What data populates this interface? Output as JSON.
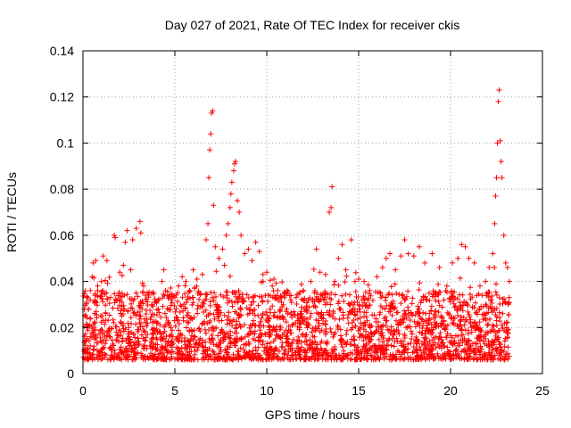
{
  "chart_data": {
    "type": "scatter",
    "title": "Day 027 of 2021, Rate Of TEC Index for receiver ckis",
    "xlabel": "GPS time / hours",
    "ylabel": "ROTI / TECUs",
    "xlim": [
      0,
      25
    ],
    "ylim": [
      0,
      0.14
    ],
    "x_ticks": [
      "0",
      "5",
      "10",
      "15",
      "20",
      "25"
    ],
    "y_ticks": [
      "0",
      "0.02",
      "0.04",
      "0.06",
      "0.08",
      "0.1",
      "0.12",
      "0.14"
    ],
    "grid": true,
    "marker": "plus",
    "color": "#ff0000",
    "points": [
      [
        0.1,
        0.025
      ],
      [
        0.2,
        0.031
      ],
      [
        0.3,
        0.028
      ],
      [
        0.4,
        0.036
      ],
      [
        0.5,
        0.042
      ],
      [
        0.55,
        0.048
      ],
      [
        0.7,
        0.049
      ],
      [
        0.8,
        0.038
      ],
      [
        1.0,
        0.04
      ],
      [
        1.1,
        0.051
      ],
      [
        1.3,
        0.049
      ],
      [
        1.5,
        0.033
      ],
      [
        1.7,
        0.06
      ],
      [
        1.75,
        0.059
      ],
      [
        2.0,
        0.044
      ],
      [
        2.2,
        0.047
      ],
      [
        2.3,
        0.057
      ],
      [
        2.4,
        0.062
      ],
      [
        2.6,
        0.045
      ],
      [
        2.7,
        0.058
      ],
      [
        2.9,
        0.063
      ],
      [
        3.1,
        0.066
      ],
      [
        3.15,
        0.061
      ],
      [
        3.3,
        0.038
      ],
      [
        3.5,
        0.035
      ],
      [
        3.9,
        0.031
      ],
      [
        4.1,
        0.028
      ],
      [
        4.3,
        0.04
      ],
      [
        4.4,
        0.045
      ],
      [
        4.6,
        0.034
      ],
      [
        4.8,
        0.032
      ],
      [
        5.0,
        0.033
      ],
      [
        5.2,
        0.038
      ],
      [
        5.4,
        0.042
      ],
      [
        5.6,
        0.04
      ],
      [
        5.8,
        0.036
      ],
      [
        6.0,
        0.045
      ],
      [
        6.2,
        0.041
      ],
      [
        6.5,
        0.043
      ],
      [
        6.7,
        0.058
      ],
      [
        6.8,
        0.065
      ],
      [
        6.85,
        0.085
      ],
      [
        6.9,
        0.097
      ],
      [
        6.95,
        0.104
      ],
      [
        7.0,
        0.113
      ],
      [
        7.05,
        0.114
      ],
      [
        7.1,
        0.073
      ],
      [
        7.2,
        0.055
      ],
      [
        7.4,
        0.05
      ],
      [
        7.6,
        0.054
      ],
      [
        7.7,
        0.047
      ],
      [
        7.8,
        0.06
      ],
      [
        7.9,
        0.065
      ],
      [
        8.0,
        0.072
      ],
      [
        8.05,
        0.078
      ],
      [
        8.1,
        0.083
      ],
      [
        8.2,
        0.088
      ],
      [
        8.25,
        0.091
      ],
      [
        8.3,
        0.092
      ],
      [
        8.4,
        0.075
      ],
      [
        8.5,
        0.07
      ],
      [
        8.6,
        0.06
      ],
      [
        8.8,
        0.052
      ],
      [
        9.0,
        0.054
      ],
      [
        9.2,
        0.049
      ],
      [
        9.4,
        0.057
      ],
      [
        9.6,
        0.053
      ],
      [
        9.8,
        0.04
      ],
      [
        10.0,
        0.044
      ],
      [
        10.3,
        0.038
      ],
      [
        10.6,
        0.036
      ],
      [
        11.0,
        0.034
      ],
      [
        11.3,
        0.032
      ],
      [
        11.6,
        0.033
      ],
      [
        12.0,
        0.036
      ],
      [
        12.4,
        0.04
      ],
      [
        12.7,
        0.054
      ],
      [
        12.9,
        0.044
      ],
      [
        13.2,
        0.043
      ],
      [
        13.4,
        0.07
      ],
      [
        13.5,
        0.072
      ],
      [
        13.55,
        0.081
      ],
      [
        13.7,
        0.04
      ],
      [
        13.9,
        0.05
      ],
      [
        14.1,
        0.056
      ],
      [
        14.3,
        0.045
      ],
      [
        14.6,
        0.058
      ],
      [
        14.8,
        0.04
      ],
      [
        15.0,
        0.041
      ],
      [
        15.3,
        0.04
      ],
      [
        15.6,
        0.036
      ],
      [
        16.0,
        0.042
      ],
      [
        16.3,
        0.046
      ],
      [
        16.5,
        0.05
      ],
      [
        16.7,
        0.052
      ],
      [
        17.0,
        0.045
      ],
      [
        17.3,
        0.051
      ],
      [
        17.5,
        0.058
      ],
      [
        17.7,
        0.052
      ],
      [
        18.0,
        0.051
      ],
      [
        18.3,
        0.055
      ],
      [
        18.6,
        0.048
      ],
      [
        19.0,
        0.052
      ],
      [
        19.4,
        0.046
      ],
      [
        19.8,
        0.038
      ],
      [
        20.1,
        0.048
      ],
      [
        20.4,
        0.05
      ],
      [
        20.6,
        0.056
      ],
      [
        20.8,
        0.055
      ],
      [
        21.0,
        0.05
      ],
      [
        21.3,
        0.048
      ],
      [
        21.6,
        0.038
      ],
      [
        21.9,
        0.04
      ],
      [
        22.1,
        0.046
      ],
      [
        22.3,
        0.052
      ],
      [
        22.4,
        0.065
      ],
      [
        22.45,
        0.077
      ],
      [
        22.5,
        0.085
      ],
      [
        22.55,
        0.1
      ],
      [
        22.6,
        0.118
      ],
      [
        22.65,
        0.123
      ],
      [
        22.7,
        0.101
      ],
      [
        22.75,
        0.092
      ],
      [
        22.8,
        0.085
      ],
      [
        22.9,
        0.06
      ],
      [
        23.0,
        0.048
      ],
      [
        23.1,
        0.046
      ],
      [
        23.2,
        0.04
      ]
    ]
  }
}
